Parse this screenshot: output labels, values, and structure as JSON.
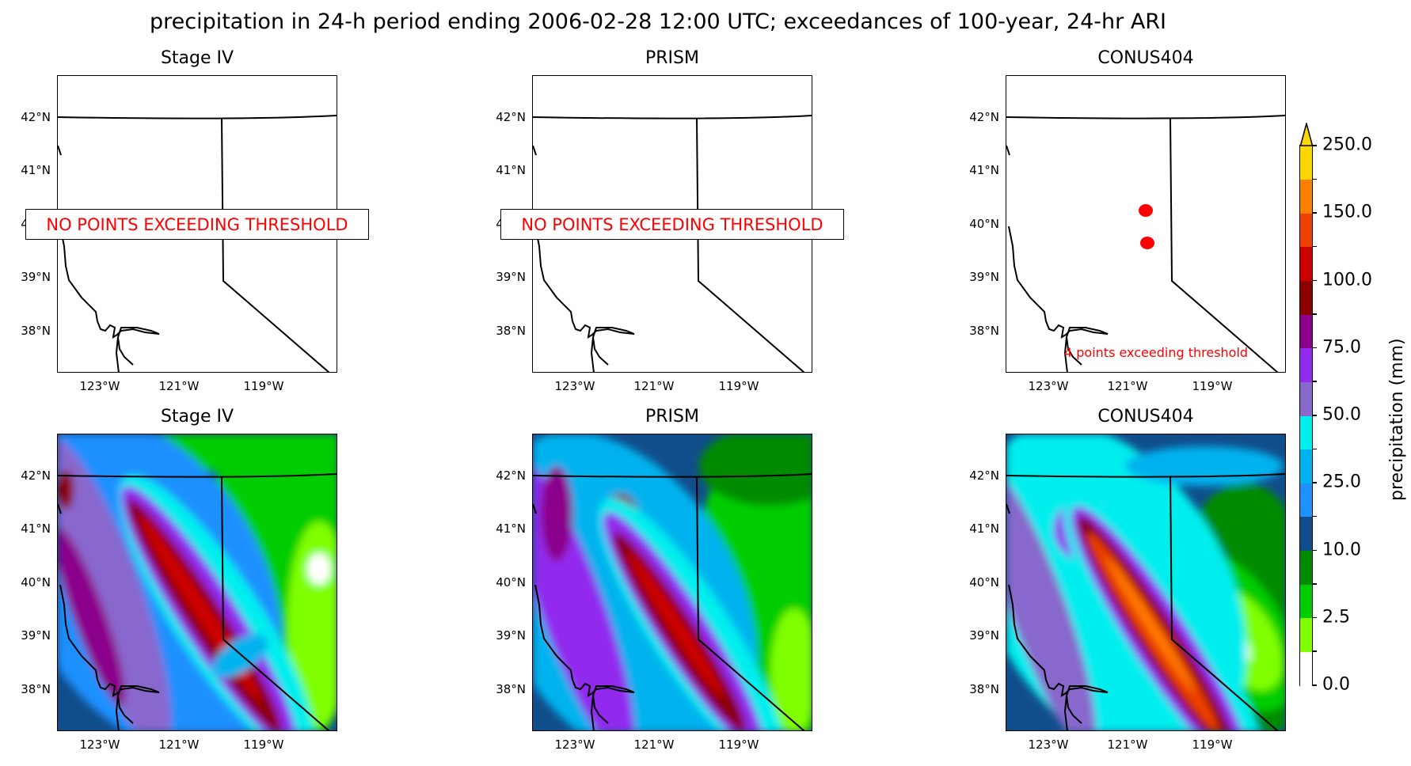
{
  "title": "precipitation in 24-h period ending 2006-02-28 12:00 UTC; exceedances of 100-year, 24-hr ARI",
  "lat_ticks": [
    "42°N",
    "41°N",
    "40°N",
    "39°N",
    "38°N"
  ],
  "lon_ticks": [
    "123°W",
    "121°W",
    "119°W"
  ],
  "top_row": [
    {
      "title": "Stage IV",
      "message": "NO POINTS EXCEEDING THRESHOLD"
    },
    {
      "title": "PRISM",
      "message": "NO POINTS EXCEEDING THRESHOLD"
    },
    {
      "title": "CONUS404",
      "message": "4 points exceeding threshold",
      "exceedance_color": "#ff0000"
    }
  ],
  "bottom_row": [
    {
      "title": "Stage IV"
    },
    {
      "title": "PRISM"
    },
    {
      "title": "CONUS404"
    }
  ],
  "colorbar": {
    "label": "precipitation (mm)",
    "tick_labels": [
      "0.0",
      "2.5",
      "10.0",
      "25.0",
      "50.0",
      "75.0",
      "100.0",
      "150.0",
      "250.0"
    ],
    "extend": "max",
    "colors": [
      "#ffffff",
      "#7fff00",
      "#00cd00",
      "#008b00",
      "#104e8b",
      "#1e90ff",
      "#00b2ee",
      "#00eeee",
      "#8968cd",
      "#912cee",
      "#8b008b",
      "#8b0000",
      "#cd0000",
      "#ee4000",
      "#ff7f00",
      "#ffd700"
    ]
  }
}
